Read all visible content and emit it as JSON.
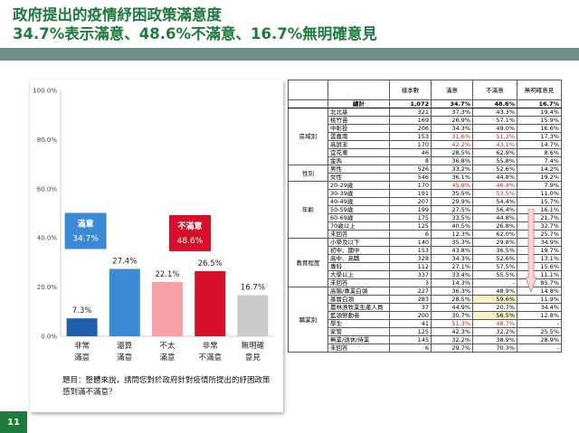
{
  "slide": {
    "title_line1": "政府提出的疫情紓困政策滿意度",
    "title_line2": "34.7%表示滿意、48.6%不滿意、16.7%無明確意見",
    "page_number": "11",
    "accent_color": "#1f7a3e"
  },
  "chart_data": {
    "type": "bar",
    "categories": [
      "非常\n滿意",
      "還算\n滿意",
      "不太\n滿意",
      "非常\n不滿意",
      "無明確\n意見"
    ],
    "values": [
      7.3,
      27.4,
      22.1,
      26.5,
      16.7
    ],
    "value_labels": [
      "7.3%",
      "27.4%",
      "22.1%",
      "26.5%",
      "16.7%"
    ],
    "colors": [
      "#1f5fab",
      "#3c8ad6",
      "#f7a2a4",
      "#d6102a",
      "#c9c9c9"
    ],
    "ylim": [
      0,
      100
    ],
    "yticks": [
      0,
      20,
      40,
      60,
      80,
      100
    ],
    "ytick_labels": [
      "0.0%",
      "20.0%",
      "40.0%",
      "60.0%",
      "80.0%",
      "100.0%"
    ],
    "grid": false,
    "annotations": [
      {
        "label": "滿意",
        "value": "34.7%",
        "color": "#3c8ad6",
        "spans": [
          0,
          1
        ]
      },
      {
        "label": "不滿意",
        "value": "48.6%",
        "color": "#d6102a",
        "spans": [
          2,
          3
        ]
      }
    ],
    "question": "題目：整體來說，請問您對於政府針對疫情所提出的紓困政策感到滿不滿意？"
  },
  "table": {
    "headers": [
      "樣本數",
      "滿意",
      "不滿意",
      "無明確意見"
    ],
    "total": {
      "label": "總計",
      "n": "1,072",
      "sat": "34.7%",
      "unsat": "48.6%",
      "none": "16.7%"
    },
    "groups": [
      {
        "name": "區域別",
        "rows": [
          {
            "label": "北北基",
            "n": "321",
            "sat": "37.3%",
            "unsat": "43.3%",
            "none": "19.4%"
          },
          {
            "label": "桃竹苗",
            "n": "169",
            "sat": "26.9%",
            "unsat": "57.1%",
            "none": "15.9%"
          },
          {
            "label": "中彰投",
            "n": "206",
            "sat": "34.3%",
            "unsat": "49.0%",
            "none": "16.6%"
          },
          {
            "label": "雲嘉南",
            "n": "153",
            "sat": "31.6%",
            "unsat": "51.2%",
            "none": "17.3%",
            "red": [
              "sat",
              "unsat"
            ]
          },
          {
            "label": "高屏澎",
            "n": "170",
            "sat": "42.2%",
            "unsat": "43.1%",
            "none": "14.7%",
            "red": [
              "sat",
              "unsat"
            ]
          },
          {
            "label": "宜花東",
            "n": "46",
            "sat": "28.5%",
            "unsat": "62.9%",
            "none": "8.6%"
          },
          {
            "label": "金馬",
            "n": "8",
            "sat": "36.8%",
            "unsat": "55.8%",
            "none": "7.4%"
          }
        ]
      },
      {
        "name": "性別",
        "rows": [
          {
            "label": "男性",
            "n": "526",
            "sat": "33.2%",
            "unsat": "52.6%",
            "none": "14.2%"
          },
          {
            "label": "女性",
            "n": "546",
            "sat": "36.1%",
            "unsat": "44.8%",
            "none": "19.2%"
          }
        ]
      },
      {
        "name": "年齡",
        "rows": [
          {
            "label": "20-29歲",
            "n": "170",
            "sat": "45.8%",
            "unsat": "46.4%",
            "none": "7.9%",
            "red": [
              "sat",
              "unsat"
            ]
          },
          {
            "label": "30-39歲",
            "n": "191",
            "sat": "35.5%",
            "unsat": "53.5%",
            "none": "11.0%",
            "red": [
              "unsat"
            ]
          },
          {
            "label": "40-49歲",
            "n": "207",
            "sat": "29.9%",
            "unsat": "54.4%",
            "none": "15.7%"
          },
          {
            "label": "50-59歲",
            "n": "199",
            "sat": "27.5%",
            "unsat": "56.4%",
            "none": "16.1%"
          },
          {
            "label": "60-69歲",
            "n": "175",
            "sat": "33.5%",
            "unsat": "44.8%",
            "none": "21.7%"
          },
          {
            "label": "70歲以上",
            "n": "125",
            "sat": "40.5%",
            "unsat": "26.8%",
            "none": "32.7%"
          },
          {
            "label": "未回答",
            "n": "6",
            "sat": "12.3%",
            "unsat": "62.0%",
            "none": "25.7%"
          }
        ]
      },
      {
        "name": "教育程度",
        "rows": [
          {
            "label": "小學及以下",
            "n": "140",
            "sat": "35.3%",
            "unsat": "29.8%",
            "none": "34.9%"
          },
          {
            "label": "初中、國中",
            "n": "153",
            "sat": "43.8%",
            "unsat": "36.5%",
            "none": "19.7%"
          },
          {
            "label": "高中、高職",
            "n": "328",
            "sat": "34.3%",
            "unsat": "52.6%",
            "none": "13.1%"
          },
          {
            "label": "專科",
            "n": "112",
            "sat": "27.1%",
            "unsat": "57.5%",
            "none": "15.6%"
          },
          {
            "label": "大學以上",
            "n": "337",
            "sat": "33.4%",
            "unsat": "55.5%",
            "none": "11.1%"
          },
          {
            "label": "未回答",
            "n": "3",
            "sat": "14.3%",
            "unsat": "-",
            "none": "85.7%"
          }
        ]
      },
      {
        "name": "職業別",
        "rows": [
          {
            "label": "高階/專業白領",
            "n": "227",
            "sat": "36.3%",
            "unsat": "48.9%",
            "none": "14.8%"
          },
          {
            "label": "基層白領",
            "n": "283",
            "sat": "28.5%",
            "unsat": "59.6%",
            "none": "11.9%",
            "yellow": [
              "unsat"
            ]
          },
          {
            "label": "農林漁牧業生產人員",
            "n": "37",
            "sat": "44.9%",
            "unsat": "20.7%",
            "none": "34.4%"
          },
          {
            "label": "藍領勞動者",
            "n": "200",
            "sat": "30.7%",
            "unsat": "56.5%",
            "none": "12.8%",
            "yellow": [
              "unsat"
            ]
          },
          {
            "label": "學生",
            "n": "41",
            "sat": "51.3%",
            "unsat": "48.7%",
            "none": "-",
            "red": [
              "sat",
              "unsat"
            ]
          },
          {
            "label": "家管",
            "n": "125",
            "sat": "42.3%",
            "unsat": "32.2%",
            "none": "25.5%"
          },
          {
            "label": "無業/退休/待業",
            "n": "145",
            "sat": "32.2%",
            "unsat": "38.9%",
            "none": "28.9%"
          },
          {
            "label": "未回答",
            "n": "6",
            "sat": "29.7%",
            "unsat": "70.3%",
            "none": "-"
          }
        ]
      }
    ]
  }
}
